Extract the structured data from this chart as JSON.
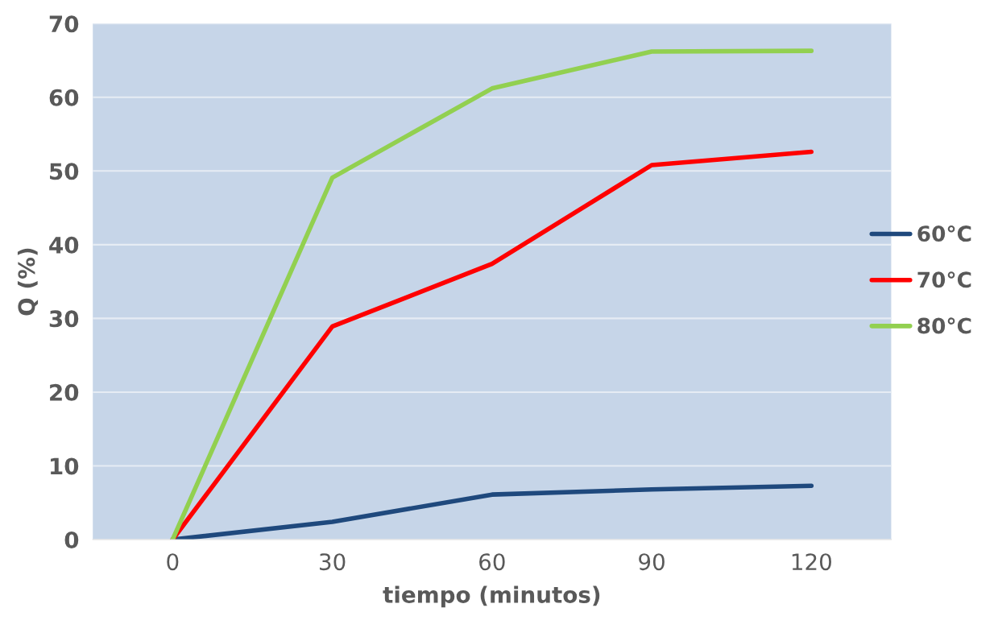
{
  "chart_data": {
    "type": "line",
    "xlabel": "tiempo (minutos)",
    "ylabel": "Q (%)",
    "categories": [
      "0",
      "30",
      "60",
      "90",
      "120"
    ],
    "series": [
      {
        "name": "60°C",
        "color": "#1f497d",
        "values": [
          0,
          2.4,
          6.1,
          6.8,
          7.3
        ]
      },
      {
        "name": "70°C",
        "color": "#ff0000",
        "values": [
          0,
          28.9,
          37.4,
          50.8,
          52.6
        ]
      },
      {
        "name": "80°C",
        "color": "#92d050",
        "values": [
          0,
          49.1,
          61.2,
          66.2,
          66.3
        ]
      }
    ],
    "ylim": [
      0,
      70
    ],
    "yticks": [
      0,
      10,
      20,
      30,
      40,
      50,
      60,
      70
    ],
    "grid": "y",
    "legend": "right",
    "marker": "none",
    "line_style": "solid"
  }
}
